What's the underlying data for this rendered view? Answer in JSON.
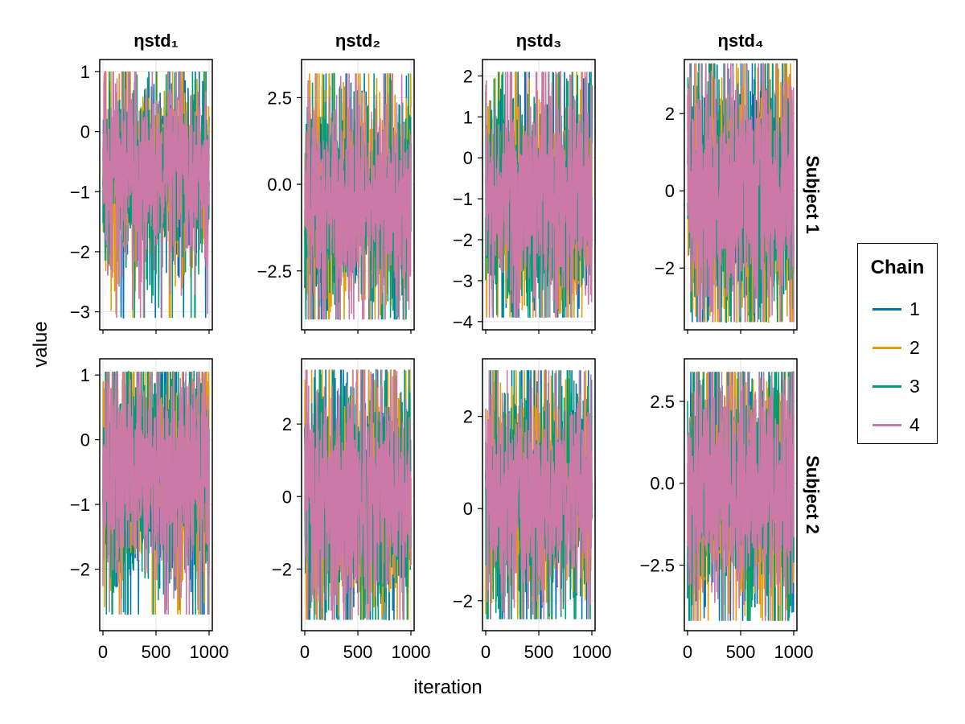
{
  "chart_data": {
    "type": "line",
    "title": "",
    "xlabel": "iteration",
    "ylabel": "value",
    "legend": {
      "title": "Chain",
      "entries": [
        {
          "label": "1",
          "color": "#0072b2"
        },
        {
          "label": "2",
          "color": "#e69f00"
        },
        {
          "label": "3",
          "color": "#009e73"
        },
        {
          "label": "4",
          "color": "#cc79a7"
        }
      ],
      "placement": "right"
    },
    "column_titles": [
      "ηstd₁",
      "ηstd₂",
      "ηstd₃",
      "ηstd₄"
    ],
    "row_titles": [
      "Subject 1",
      "Subject 2"
    ],
    "xlim": [
      0,
      1000
    ],
    "xticks": [
      0,
      500,
      1000
    ],
    "xtick_labels": [
      "0",
      "500",
      "1000"
    ],
    "panels": [
      {
        "row": 0,
        "col": 0,
        "ylim": [
          -3.3,
          1.2
        ],
        "yticks": [
          1,
          0,
          -1,
          -2,
          -3
        ],
        "ytick_labels": [
          "1",
          "0",
          "−1",
          "−2",
          "−3"
        ],
        "center": -0.7,
        "core_lo": -1.5,
        "core_hi": 0.1,
        "min": -3.1,
        "max": 1.0
      },
      {
        "row": 0,
        "col": 1,
        "ylim": [
          -4.2,
          3.6
        ],
        "yticks": [
          2.5,
          0.0,
          -2.5
        ],
        "ytick_labels": [
          "2.5",
          "0.0",
          "−2.5"
        ],
        "center": -0.5,
        "core_lo": -2.0,
        "core_hi": 1.3,
        "min": -3.9,
        "max": 3.2
      },
      {
        "row": 0,
        "col": 2,
        "ylim": [
          -4.2,
          2.4
        ],
        "yticks": [
          2,
          1,
          0,
          -1,
          -2,
          -3,
          -4
        ],
        "ytick_labels": [
          "2",
          "1",
          "0",
          "−1",
          "−2",
          "−3",
          "−4"
        ],
        "center": -1.0,
        "core_lo": -2.2,
        "core_hi": 0.8,
        "min": -3.9,
        "max": 2.1
      },
      {
        "row": 0,
        "col": 3,
        "ylim": [
          -3.6,
          3.4
        ],
        "yticks": [
          2,
          0,
          -2
        ],
        "ytick_labels": [
          "2",
          "0",
          "−2"
        ],
        "center": -0.1,
        "core_lo": -1.8,
        "core_hi": 1.8,
        "min": -3.4,
        "max": 3.3
      },
      {
        "row": 1,
        "col": 0,
        "ylim": [
          -2.95,
          1.25
        ],
        "yticks": [
          1,
          0,
          -1,
          -2
        ],
        "ytick_labels": [
          "1",
          "0",
          "−1",
          "−2"
        ],
        "center": -0.5,
        "core_lo": -1.5,
        "core_hi": 0.4,
        "min": -2.7,
        "max": 1.05
      },
      {
        "row": 1,
        "col": 1,
        "ylim": [
          -3.7,
          3.8
        ],
        "yticks": [
          2,
          0,
          -2
        ],
        "ytick_labels": [
          "2",
          "0",
          "−2"
        ],
        "center": 0.0,
        "core_lo": -1.8,
        "core_hi": 1.8,
        "min": -3.4,
        "max": 3.5
      },
      {
        "row": 1,
        "col": 2,
        "ylim": [
          -2.65,
          3.25
        ],
        "yticks": [
          2,
          0,
          -2
        ],
        "ytick_labels": [
          "2",
          "0",
          "−2"
        ],
        "center": 0.3,
        "core_lo": -0.8,
        "core_hi": 1.8,
        "min": -2.4,
        "max": 3.0
      },
      {
        "row": 1,
        "col": 3,
        "ylim": [
          -4.5,
          3.8
        ],
        "yticks": [
          2.5,
          0.0,
          -2.5
        ],
        "ytick_labels": [
          "2.5",
          "0.0",
          "−2.5"
        ],
        "center": -0.2,
        "core_lo": -2.0,
        "core_hi": 2.0,
        "min": -4.2,
        "max": 3.4
      }
    ]
  }
}
